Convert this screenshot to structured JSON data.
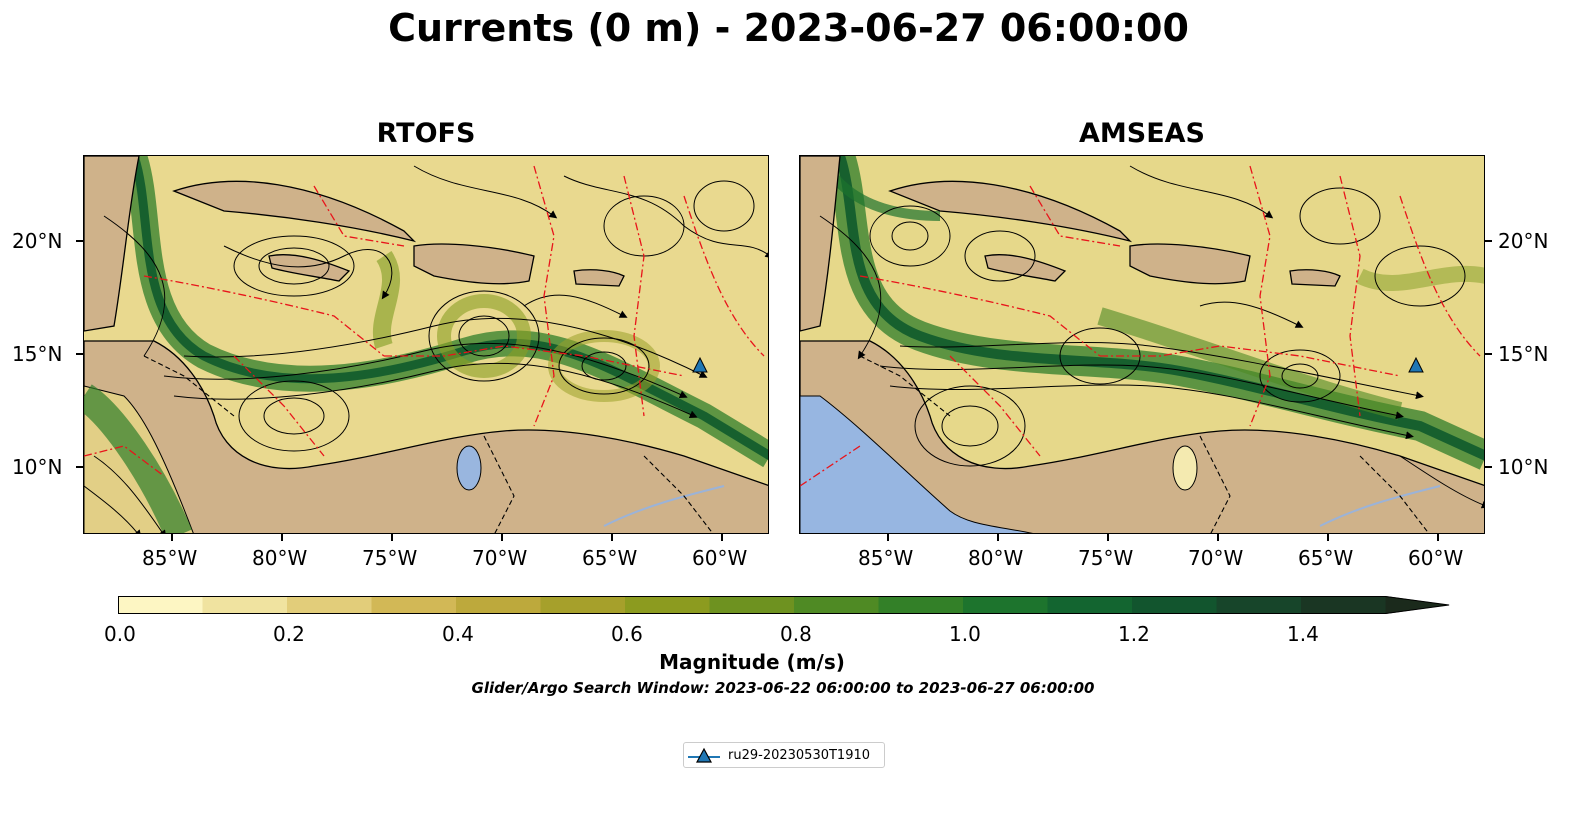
{
  "title": "Currents (0 m) - 2023-06-27 06:00:00",
  "panels": [
    {
      "title": "RTOFS"
    },
    {
      "title": "AMSEAS"
    }
  ],
  "axes": {
    "lon_ticks": [
      "85°W",
      "80°W",
      "75°W",
      "70°W",
      "65°W",
      "60°W"
    ],
    "lat_ticks": [
      "20°N",
      "15°N",
      "10°N"
    ]
  },
  "colorbar": {
    "label": "Magnitude (m/s)",
    "ticks": [
      "0.0",
      "0.2",
      "0.4",
      "0.6",
      "0.8",
      "1.0",
      "1.2",
      "1.4"
    ],
    "colors": [
      "#fdf6c3",
      "#f0e3a0",
      "#e2cd7a",
      "#d2b856",
      "#bda93c",
      "#a6a02b",
      "#8c9b1f",
      "#6e9220",
      "#4f8a24",
      "#338028",
      "#1d742d",
      "#136530",
      "#12552e",
      "#17452a",
      "#1a3623",
      "#1b2a1c"
    ]
  },
  "note": "Glider/Argo Search Window: 2023-06-22 06:00:00 to 2023-06-27 06:00:00",
  "legend": {
    "label": "ru29-20230530T1910",
    "color": "#1f77b4"
  }
}
